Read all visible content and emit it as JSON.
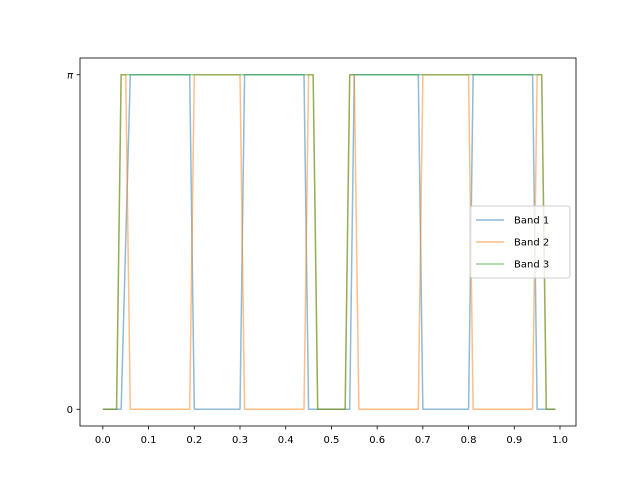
{
  "chart_data": {
    "type": "line",
    "title": "",
    "xlabel": "",
    "ylabel": "",
    "xlim": [
      -0.05,
      1.035
    ],
    "ylim": [
      -0.157,
      3.299
    ],
    "x_ticks": [
      {
        "value": 0.0,
        "label": "0.0"
      },
      {
        "value": 0.1,
        "label": "0.1"
      },
      {
        "value": 0.2,
        "label": "0.2"
      },
      {
        "value": 0.3,
        "label": "0.3"
      },
      {
        "value": 0.4,
        "label": "0.4"
      },
      {
        "value": 0.5,
        "label": "0.5"
      },
      {
        "value": 0.6,
        "label": "0.6"
      },
      {
        "value": 0.7,
        "label": "0.7"
      },
      {
        "value": 0.8,
        "label": "0.8"
      },
      {
        "value": 0.9,
        "label": "0.9"
      },
      {
        "value": 1.0,
        "label": "1.0"
      }
    ],
    "y_ticks": [
      {
        "value": 0,
        "label": "0"
      },
      {
        "value": 3.14159,
        "label": "π"
      }
    ],
    "grid": false,
    "legend_position": "center-right",
    "series": [
      {
        "name": "Band 1",
        "color": "#1f77b4",
        "x": [
          0.0,
          0.04,
          0.06,
          0.19,
          0.2,
          0.3,
          0.31,
          0.44,
          0.45,
          0.54,
          0.55,
          0.69,
          0.7,
          0.8,
          0.81,
          0.94,
          0.95,
          0.99
        ],
        "y": [
          0,
          0,
          3.14159,
          3.14159,
          0,
          0,
          3.14159,
          3.14159,
          0,
          0,
          3.14159,
          3.14159,
          0,
          0,
          3.14159,
          3.14159,
          0,
          0
        ]
      },
      {
        "name": "Band 2",
        "color": "#ff7f0e",
        "x": [
          0.0,
          0.03,
          0.04,
          0.05,
          0.06,
          0.19,
          0.2,
          0.3,
          0.31,
          0.44,
          0.45,
          0.46,
          0.47,
          0.53,
          0.54,
          0.55,
          0.56,
          0.69,
          0.7,
          0.8,
          0.81,
          0.94,
          0.95,
          0.96,
          0.97,
          0.99
        ],
        "y": [
          0,
          0,
          3.14159,
          3.14159,
          0,
          0,
          3.14159,
          3.14159,
          0,
          0,
          3.14159,
          3.14159,
          0,
          0,
          3.14159,
          3.14159,
          0,
          0,
          3.14159,
          3.14159,
          0,
          0,
          3.14159,
          3.14159,
          0,
          0
        ]
      },
      {
        "name": "Band 3",
        "color": "#2ca02c",
        "x": [
          0.0,
          0.03,
          0.04,
          0.46,
          0.47,
          0.53,
          0.54,
          0.96,
          0.97,
          0.99
        ],
        "y": [
          0,
          0,
          3.14159,
          3.14159,
          0,
          0,
          3.14159,
          3.14159,
          0,
          0
        ]
      }
    ]
  }
}
